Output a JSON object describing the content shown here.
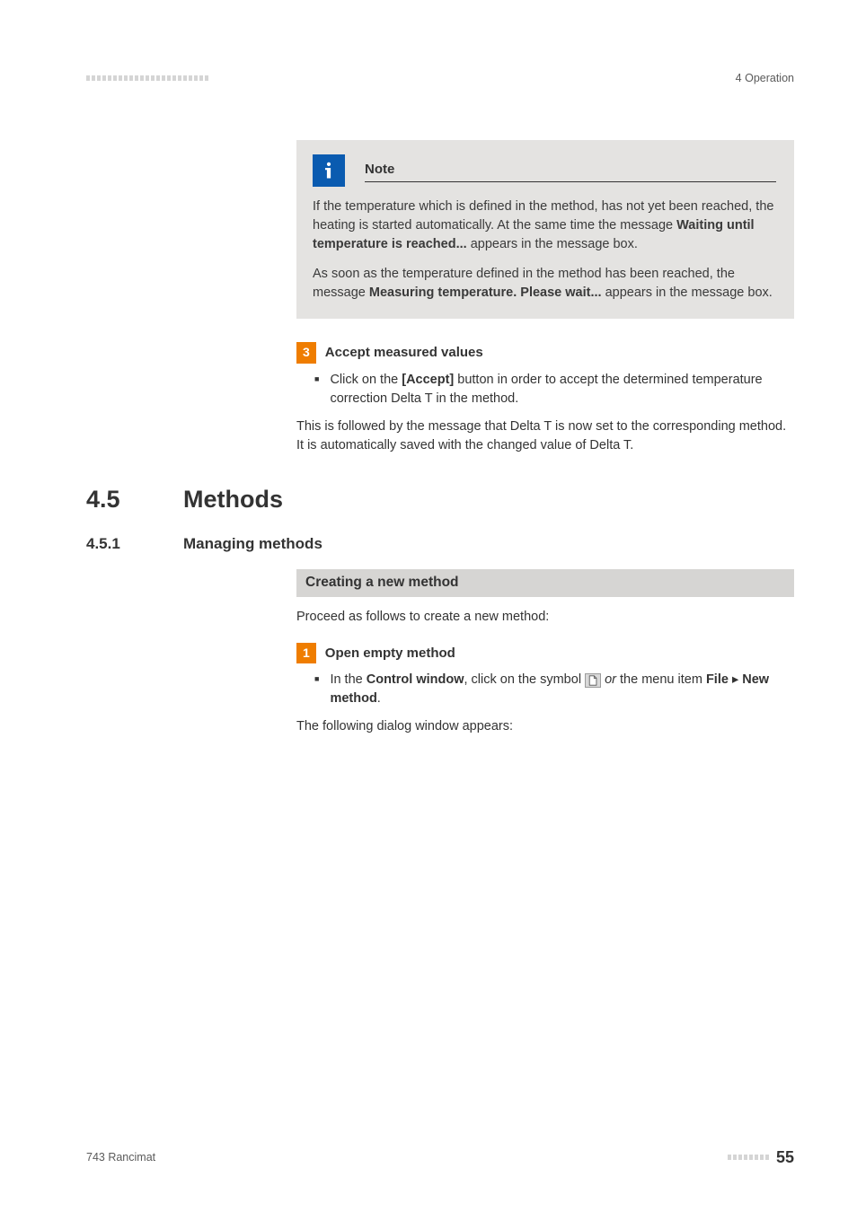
{
  "header": {
    "right_label": "4 Operation",
    "dash_count": 23
  },
  "note": {
    "title": "Note",
    "para1_pre": "If the temperature which is defined in the method, has not yet been reached, the heating is started automatically. At the same time the message ",
    "para1_bold": "Waiting until temperature is reached...",
    "para1_post": " appears in the message box.",
    "para2_pre": "As soon as the temperature defined in the method has been reached, the message ",
    "para2_bold": "Measuring temperature. Please wait...",
    "para2_post": " appears in the message box."
  },
  "step3": {
    "num": "3",
    "title": "Accept measured values",
    "bullet_pre": "Click on the ",
    "bullet_bold": "[Accept]",
    "bullet_post": " button in order to accept the determined temperature correction Delta T in the method.",
    "body": "This is followed by the message that Delta T is now set to the corresponding method. It is automatically saved with the changed value of Delta T."
  },
  "section": {
    "num": "4.5",
    "title": "Methods"
  },
  "subsection": {
    "num": "4.5.1",
    "title": "Managing methods"
  },
  "graybar": "Creating a new method",
  "intro": "Proceed as follows to create a new method:",
  "step1": {
    "num": "1",
    "title": "Open empty method",
    "bullet_pre": "In the ",
    "bullet_b1": "Control window",
    "bullet_mid1": ", click on the symbol ",
    "bullet_mid2": " ",
    "bullet_em": "or",
    "bullet_mid3": " the menu item ",
    "bullet_b2": "File",
    "bullet_arrow": " ▸ ",
    "bullet_b3": "New method",
    "bullet_post": ".",
    "body": "The following dialog window appears:"
  },
  "footer": {
    "left": "743 Rancimat",
    "dash_count": 8,
    "page": "55"
  },
  "colors": {
    "orange": "#ef7d00",
    "blue": "#0a5bb0",
    "note_bg": "#e4e3e1",
    "gray_bar": "#d6d5d3",
    "dash": "#d5d5d5"
  }
}
